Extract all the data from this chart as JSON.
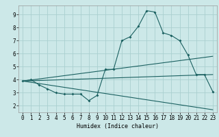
{
  "xlabel": "Humidex (Indice chaleur)",
  "bg_color": "#cce8e8",
  "grid_color": "#aacfcf",
  "line_color": "#1a6060",
  "xlim": [
    -0.5,
    23.5
  ],
  "ylim": [
    1.5,
    9.7
  ],
  "xticks": [
    0,
    1,
    2,
    3,
    4,
    5,
    6,
    7,
    8,
    9,
    10,
    11,
    12,
    13,
    14,
    15,
    16,
    17,
    18,
    19,
    20,
    21,
    22,
    23
  ],
  "yticks": [
    2,
    3,
    4,
    5,
    6,
    7,
    8,
    9
  ],
  "line1_x": [
    0,
    1,
    2,
    3,
    4,
    5,
    6,
    7,
    8,
    9,
    10,
    11,
    12,
    13,
    14,
    15,
    16,
    17,
    18,
    19,
    20,
    21,
    22,
    23
  ],
  "line1_y": [
    3.9,
    4.0,
    3.6,
    3.3,
    3.0,
    2.9,
    2.9,
    2.9,
    2.4,
    2.8,
    4.8,
    4.8,
    7.0,
    7.3,
    8.1,
    9.3,
    9.2,
    7.6,
    7.4,
    7.0,
    5.9,
    4.4,
    4.4,
    3.1
  ],
  "line2_x": [
    0,
    23
  ],
  "line2_y": [
    3.9,
    5.8
  ],
  "line3_x": [
    0,
    23
  ],
  "line3_y": [
    3.9,
    4.4
  ],
  "line4_x": [
    0,
    23
  ],
  "line4_y": [
    3.9,
    1.7
  ],
  "tick_fontsize": 5.5,
  "xlabel_fontsize": 6.0,
  "marker_size": 2.0,
  "line_width": 0.8
}
